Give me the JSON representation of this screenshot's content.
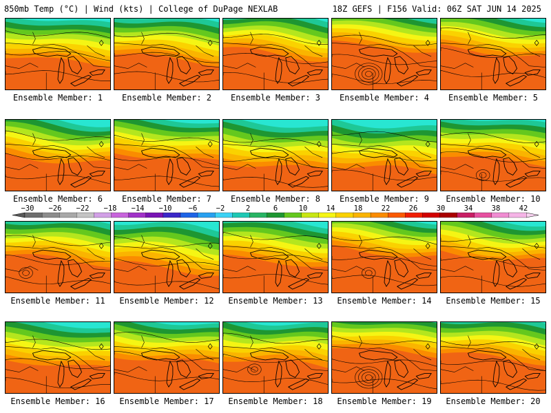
{
  "header": {
    "left": "850mb Temp (°C) | Wind (kts) | College of DuPage NEXLAB",
    "right": "18Z GEFS | F156 Valid: 06Z SAT JUN 14 2025"
  },
  "panels": [
    {
      "label": "Ensemble Member: 1",
      "warmth": 0.55
    },
    {
      "label": "Ensemble Member: 2",
      "warmth": 0.6
    },
    {
      "label": "Ensemble Member: 3",
      "warmth": 0.7
    },
    {
      "label": "Ensemble Member: 4",
      "warmth": 0.85
    },
    {
      "label": "Ensemble Member: 5",
      "warmth": 0.75
    },
    {
      "label": "Ensemble Member: 6",
      "warmth": 0.6
    },
    {
      "label": "Ensemble Member: 7",
      "warmth": 0.65
    },
    {
      "label": "Ensemble Member: 8",
      "warmth": 0.45
    },
    {
      "label": "Ensemble Member: 9",
      "warmth": 0.4
    },
    {
      "label": "Ensemble Member: 10",
      "warmth": 0.6
    },
    {
      "label": "Ensemble Member: 11",
      "warmth": 0.65
    },
    {
      "label": "Ensemble Member: 12",
      "warmth": 0.45
    },
    {
      "label": "Ensemble Member: 13",
      "warmth": 0.6
    },
    {
      "label": "Ensemble Member: 14",
      "warmth": 0.8
    },
    {
      "label": "Ensemble Member: 15",
      "warmth": 0.7
    },
    {
      "label": "Ensemble Member: 16",
      "warmth": 0.55
    },
    {
      "label": "Ensemble Member: 17",
      "warmth": 0.65
    },
    {
      "label": "Ensemble Member: 18",
      "warmth": 0.6
    },
    {
      "label": "Ensemble Member: 19",
      "warmth": 0.85
    },
    {
      "label": "Ensemble Member: 20",
      "warmth": 0.7
    }
  ],
  "colorbar": {
    "labels": [
      "-30",
      "-26",
      "-22",
      "-18",
      "-14",
      "-10",
      "-6",
      "-2",
      "2",
      "6",
      "10",
      "14",
      "18",
      "22",
      "26",
      "30",
      "34",
      "38",
      "42"
    ],
    "colors": [
      "#6e6e6e",
      "#8c8c8c",
      "#a8a8a8",
      "#c4c4c4",
      "#d2a0e6",
      "#c864dc",
      "#a032c8",
      "#7814b4",
      "#3c28c8",
      "#1e64e6",
      "#28a0f0",
      "#3cd2f5",
      "#1ec8b4",
      "#28b464",
      "#1e9632",
      "#64c81e",
      "#c8e614",
      "#f5f514",
      "#fad200",
      "#fab400",
      "#fa8c00",
      "#fa5a00",
      "#f01e00",
      "#d20000",
      "#aa0000",
      "#c81e64",
      "#e650a0",
      "#f08cd2",
      "#f5b4e6"
    ]
  },
  "palette": {
    "cyan": "#28e6d2",
    "teal": "#1ec896",
    "green": "#1e9632",
    "light_green": "#64c81e",
    "lime": "#b4e61e",
    "yellow": "#f5f514",
    "gold": "#fad200",
    "orange": "#fab400",
    "dark_orange": "#fa8c00",
    "red_orange": "#f06414"
  }
}
